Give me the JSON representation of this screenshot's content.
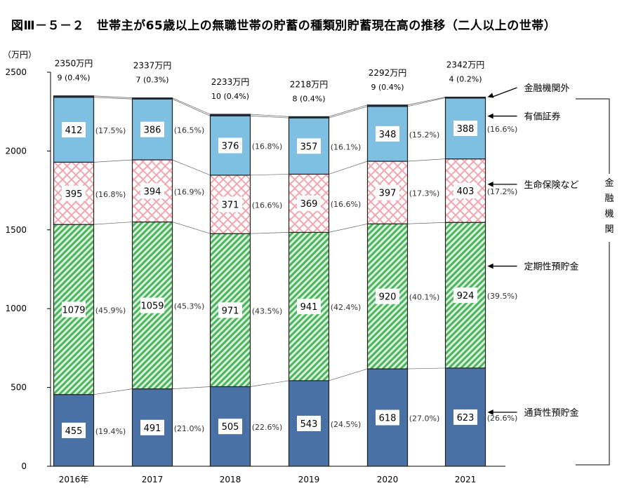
{
  "chart_data": {
    "type": "bar",
    "stacked": true,
    "title": "図Ⅲ－５－２　世帯主が65歳以上の無職世帯の貯蓄の種類別貯蓄現在高の推移（二人以上の世帯）",
    "ylabel": "（万円）",
    "xlabel": "",
    "ylim": [
      0,
      2500
    ],
    "yticks": [
      0,
      500,
      1000,
      1500,
      2000,
      2500
    ],
    "categories": [
      "2016年",
      "2017",
      "2018",
      "2019",
      "2020",
      "2021"
    ],
    "totals": [
      "2350万円",
      "2337万円",
      "2233万円",
      "2218万円",
      "2292万円",
      "2342万円"
    ],
    "series": [
      {
        "name": "通貨性預貯金",
        "color": "#4a71a6",
        "values": [
          455,
          491,
          505,
          543,
          618,
          623
        ],
        "shares": [
          "(19.4%)",
          "(21.0%)",
          "(22.6%)",
          "(24.5%)",
          "(27.0%)",
          "(26.6%)"
        ]
      },
      {
        "name": "定期性預貯金",
        "color": "#5cbf6a",
        "values": [
          1079,
          1059,
          971,
          941,
          920,
          924
        ],
        "shares": [
          "(45.9%)",
          "(45.3%)",
          "(43.5%)",
          "(42.4%)",
          "(40.1%)",
          "(39.5%)"
        ]
      },
      {
        "name": "生命保険など",
        "color": "#f4a6b0",
        "values": [
          395,
          394,
          371,
          369,
          397,
          403
        ],
        "shares": [
          "(16.8%)",
          "(16.9%)",
          "(16.6%)",
          "(16.6%)",
          "(17.3%)",
          "(17.2%)"
        ]
      },
      {
        "name": "有価証券",
        "color": "#7ebfe2",
        "values": [
          412,
          386,
          376,
          357,
          348,
          388
        ],
        "shares": [
          "(17.5%)",
          "(16.5%)",
          "(16.8%)",
          "(16.1%)",
          "(15.2%)",
          "(16.6%)"
        ]
      },
      {
        "name": "金融機関外",
        "color": "#1f3050",
        "values": [
          9,
          7,
          10,
          8,
          9,
          4
        ],
        "shares": [
          "(0.4%)",
          "(0.3%)",
          "(0.4%)",
          "(0.4%)",
          "(0.4%)",
          "(0.2%)"
        ]
      }
    ],
    "bracket_label": "金融機関",
    "legend": "right, arrow labels",
    "grid": false
  }
}
